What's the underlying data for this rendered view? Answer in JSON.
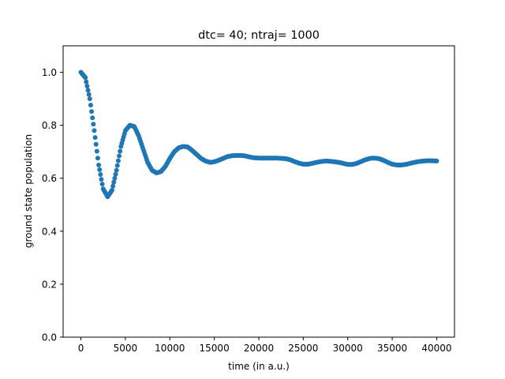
{
  "chart_data": {
    "type": "scatter",
    "title": "dtc= 40; ntraj= 1000",
    "xlabel": "time (in a.u.)",
    "ylabel": "ground state population",
    "xlim": [
      -2000,
      42000
    ],
    "ylim": [
      0.0,
      1.1
    ],
    "xticks": [
      0,
      5000,
      10000,
      15000,
      20000,
      25000,
      30000,
      35000,
      40000
    ],
    "yticks": [
      0.0,
      0.2,
      0.4,
      0.6,
      0.8,
      1.0
    ],
    "xtick_labels": [
      "0",
      "5000",
      "10000",
      "15000",
      "20000",
      "25000",
      "30000",
      "35000",
      "40000"
    ],
    "ytick_labels": [
      "0.0",
      "0.2",
      "0.4",
      "0.6",
      "0.8",
      "1.0"
    ],
    "grid": false,
    "legend": false,
    "series": [
      {
        "color": "#1f77b4",
        "x": [
          0,
          500,
          1000,
          1500,
          2000,
          2500,
          3000,
          3500,
          4000,
          4500,
          5000,
          5500,
          6000,
          6500,
          7000,
          7500,
          8000,
          8500,
          9000,
          9500,
          10000,
          10500,
          11000,
          11500,
          12000,
          12500,
          13000,
          13500,
          14000,
          14500,
          15000,
          15500,
          16000,
          16500,
          17000,
          17500,
          18000,
          18500,
          19000,
          19500,
          20000,
          20500,
          21000,
          21500,
          22000,
          22500,
          23000,
          23500,
          24000,
          24500,
          25000,
          25500,
          26000,
          26500,
          27000,
          27500,
          28000,
          28500,
          29000,
          29500,
          30000,
          30500,
          31000,
          31500,
          32000,
          32500,
          33000,
          33500,
          34000,
          34500,
          35000,
          35500,
          36000,
          36500,
          37000,
          37500,
          38000,
          38500,
          39000,
          39500,
          40000
        ],
        "y": [
          1.0,
          0.98,
          0.9,
          0.78,
          0.65,
          0.56,
          0.53,
          0.555,
          0.63,
          0.72,
          0.78,
          0.8,
          0.795,
          0.76,
          0.71,
          0.66,
          0.63,
          0.62,
          0.625,
          0.645,
          0.675,
          0.7,
          0.715,
          0.72,
          0.718,
          0.705,
          0.69,
          0.675,
          0.665,
          0.66,
          0.662,
          0.668,
          0.675,
          0.682,
          0.685,
          0.686,
          0.686,
          0.684,
          0.68,
          0.677,
          0.676,
          0.676,
          0.676,
          0.676,
          0.676,
          0.675,
          0.674,
          0.67,
          0.663,
          0.657,
          0.653,
          0.653,
          0.656,
          0.66,
          0.663,
          0.665,
          0.664,
          0.662,
          0.66,
          0.656,
          0.652,
          0.652,
          0.656,
          0.663,
          0.67,
          0.675,
          0.676,
          0.674,
          0.668,
          0.66,
          0.653,
          0.65,
          0.65,
          0.652,
          0.656,
          0.66,
          0.663,
          0.665,
          0.666,
          0.666,
          0.665
        ]
      }
    ]
  }
}
